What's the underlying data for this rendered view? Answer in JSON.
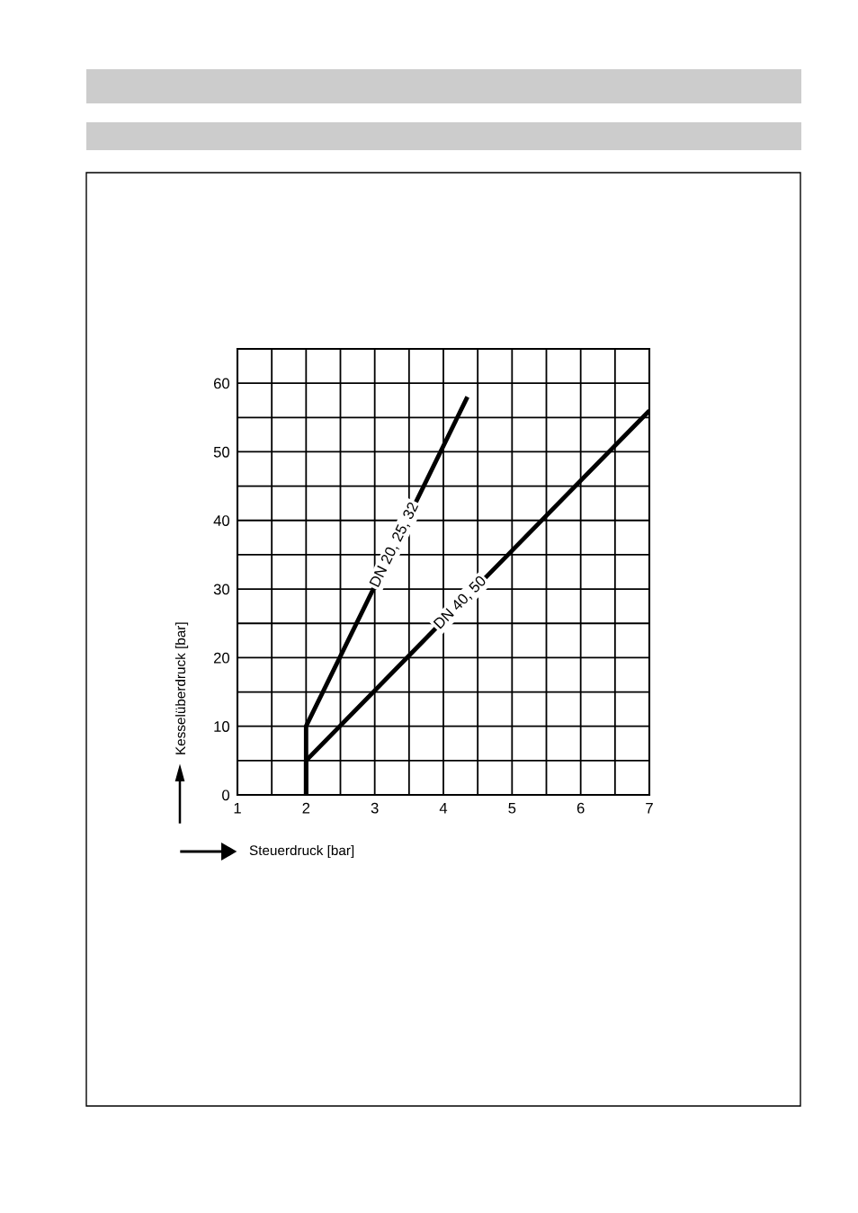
{
  "chart_data": {
    "type": "line",
    "xlabel": "Steuerdruck [bar]",
    "ylabel": "Kesselüberdruck [bar]",
    "series": [
      {
        "name": "DN 20, 25, 32",
        "color": "#000000",
        "x": [
          2,
          2,
          4.35
        ],
        "values": [
          0,
          10,
          58
        ]
      },
      {
        "name": "DN 40, 50",
        "color": "#000000",
        "x": [
          2,
          2,
          7
        ],
        "values": [
          0,
          5,
          56
        ]
      }
    ],
    "xlim": [
      1,
      7
    ],
    "xticks": [
      1,
      {
        "value": 1.5,
        "label": null
      },
      2,
      {
        "value": 2.5,
        "label": null
      },
      3,
      {
        "value": 3.5,
        "label": null
      },
      4,
      {
        "value": 4.5,
        "label": null
      },
      5,
      {
        "value": 5.5,
        "label": null
      },
      6,
      {
        "value": 6.5,
        "label": null
      },
      7
    ],
    "ylim": [
      0,
      65
    ],
    "yticks": [
      0,
      {
        "value": 5,
        "label": null
      },
      10,
      {
        "value": 15,
        "label": null
      },
      20,
      {
        "value": 25,
        "label": null
      },
      30,
      {
        "value": 35,
        "label": null
      },
      40,
      {
        "value": 45,
        "label": null
      },
      50,
      {
        "value": 55,
        "label": null
      },
      60,
      {
        "value": 65,
        "label": null
      }
    ],
    "grid": true,
    "legend": false,
    "marker": "none",
    "line_style": "solid"
  }
}
